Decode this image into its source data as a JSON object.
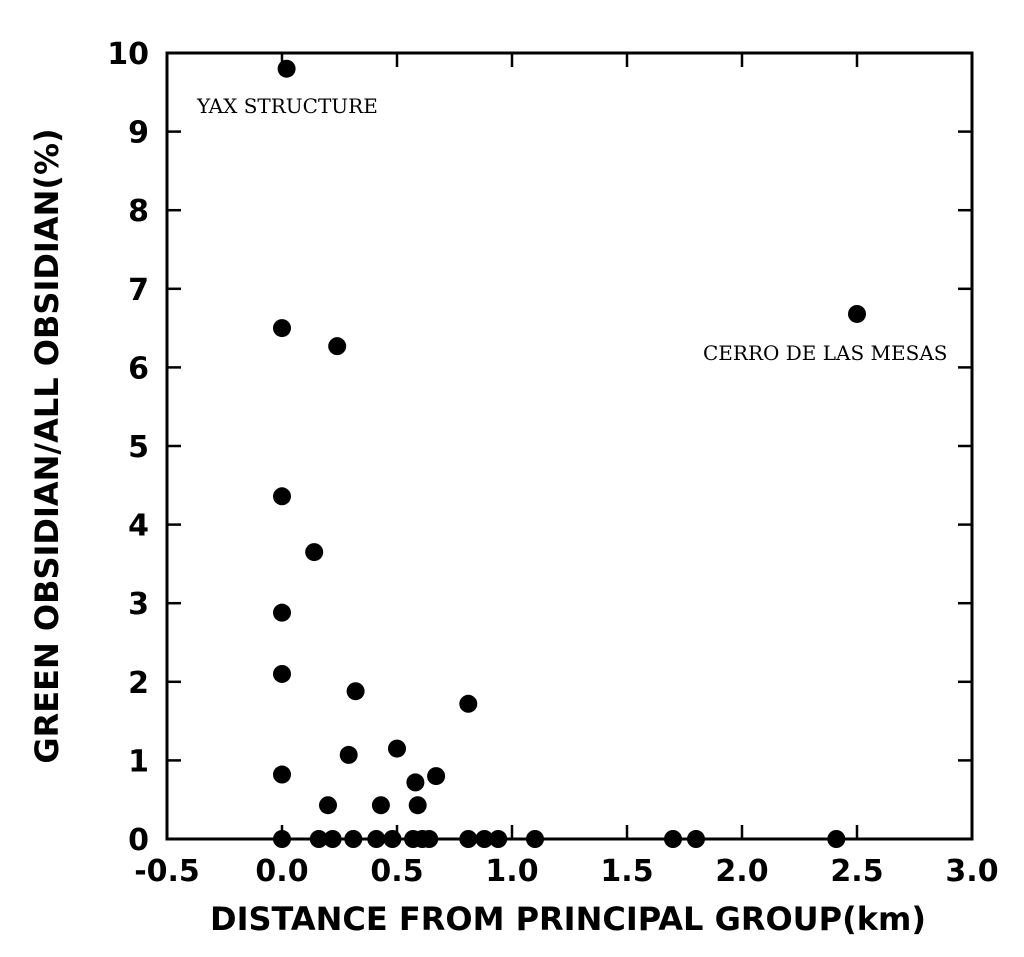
{
  "chart_data": {
    "type": "scatter",
    "xlabel": "DISTANCE FROM PRINCIPAL GROUP(km)",
    "ylabel": "GREEN OBSIDIAN/ALL OBSIDIAN(%)",
    "xlim": [
      -0.5,
      3.0
    ],
    "ylim": [
      0,
      10
    ],
    "xticks": [
      "-0.5",
      "0.0",
      "0.5",
      "1.0",
      "1.5",
      "2.0",
      "2.5",
      "3.0"
    ],
    "yticks": [
      "0",
      "1",
      "2",
      "3",
      "4",
      "5",
      "6",
      "7",
      "8",
      "9",
      "10"
    ],
    "grid": false,
    "points": [
      {
        "x": 0.02,
        "y": 9.8
      },
      {
        "x": 2.5,
        "y": 6.68
      },
      {
        "x": 0.0,
        "y": 6.5
      },
      {
        "x": 0.24,
        "y": 6.27
      },
      {
        "x": 0.0,
        "y": 4.36
      },
      {
        "x": 0.14,
        "y": 3.65
      },
      {
        "x": 0.0,
        "y": 2.88
      },
      {
        "x": 0.0,
        "y": 2.1
      },
      {
        "x": 0.32,
        "y": 1.88
      },
      {
        "x": 0.81,
        "y": 1.72
      },
      {
        "x": 0.5,
        "y": 1.15
      },
      {
        "x": 0.29,
        "y": 1.07
      },
      {
        "x": 0.0,
        "y": 0.82
      },
      {
        "x": 0.67,
        "y": 0.8
      },
      {
        "x": 0.58,
        "y": 0.72
      },
      {
        "x": 0.2,
        "y": 0.43
      },
      {
        "x": 0.43,
        "y": 0.43
      },
      {
        "x": 0.59,
        "y": 0.43
      },
      {
        "x": 0.0,
        "y": 0.0
      },
      {
        "x": 0.16,
        "y": 0.0
      },
      {
        "x": 0.22,
        "y": 0.0
      },
      {
        "x": 0.31,
        "y": 0.0
      },
      {
        "x": 0.41,
        "y": 0.0
      },
      {
        "x": 0.48,
        "y": 0.0
      },
      {
        "x": 0.57,
        "y": 0.0
      },
      {
        "x": 0.61,
        "y": 0.0
      },
      {
        "x": 0.64,
        "y": 0.0
      },
      {
        "x": 0.81,
        "y": 0.0
      },
      {
        "x": 0.88,
        "y": 0.0
      },
      {
        "x": 0.94,
        "y": 0.0
      },
      {
        "x": 1.1,
        "y": 0.0
      },
      {
        "x": 1.7,
        "y": 0.0
      },
      {
        "x": 1.8,
        "y": 0.0
      },
      {
        "x": 2.41,
        "y": 0.0
      }
    ],
    "annotations": [
      {
        "text": "YAX STRUCTURE",
        "x": 0.02,
        "y": 9.8
      },
      {
        "text": "CERRO DE LAS MESAS",
        "x": 2.5,
        "y": 6.68
      }
    ]
  }
}
